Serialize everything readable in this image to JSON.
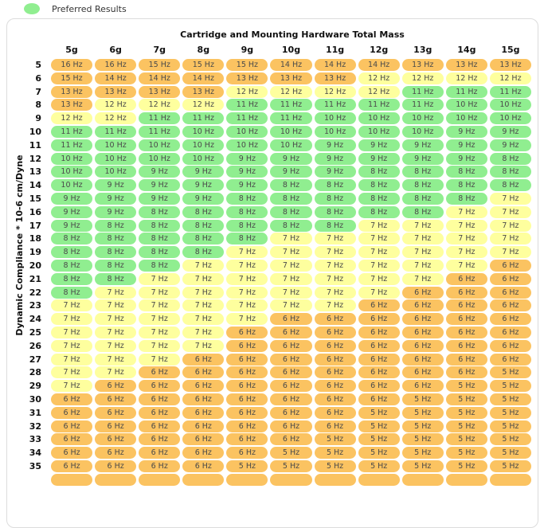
{
  "legend": {
    "label": "Preferred Results",
    "dot_color": "#90EE90"
  },
  "panel": {
    "title": "Cartridge and Mounting Hardware Total Mass",
    "y_axis_label": "Dynamic Compliance * 10-6 cm/Dyne"
  },
  "chart_data": {
    "type": "heatmap",
    "title": "Cartridge and Mounting Hardware Total Mass",
    "xlabel": "Cartridge and Mounting Hardware Total Mass",
    "ylabel": "Dynamic Compliance * 10-6 cm/Dyne",
    "unit": "Hz",
    "columns": [
      "5g",
      "6g",
      "7g",
      "8g",
      "9g",
      "10g",
      "11g",
      "12g",
      "13g",
      "14g",
      "15g"
    ],
    "row_labels": [
      5,
      6,
      7,
      8,
      9,
      10,
      11,
      12,
      13,
      14,
      15,
      16,
      17,
      18,
      19,
      20,
      21,
      22,
      23,
      24,
      25,
      26,
      27,
      28,
      29,
      30,
      31,
      32,
      33,
      34,
      35
    ],
    "values": [
      [
        16,
        16,
        15,
        15,
        15,
        14,
        14,
        14,
        13,
        13,
        13
      ],
      [
        15,
        14,
        14,
        14,
        13,
        13,
        13,
        12,
        12,
        12,
        12
      ],
      [
        13,
        13,
        13,
        13,
        12,
        12,
        12,
        12,
        11,
        11,
        11
      ],
      [
        13,
        12,
        12,
        12,
        11,
        11,
        11,
        11,
        11,
        10,
        10
      ],
      [
        12,
        12,
        11,
        11,
        11,
        11,
        10,
        10,
        10,
        10,
        10
      ],
      [
        11,
        11,
        11,
        10,
        10,
        10,
        10,
        10,
        10,
        9,
        9
      ],
      [
        11,
        10,
        10,
        10,
        10,
        10,
        9,
        9,
        9,
        9,
        9
      ],
      [
        10,
        10,
        10,
        10,
        9,
        9,
        9,
        9,
        9,
        9,
        8
      ],
      [
        10,
        10,
        9,
        9,
        9,
        9,
        9,
        8,
        8,
        8,
        8
      ],
      [
        10,
        9,
        9,
        9,
        9,
        8,
        8,
        8,
        8,
        8,
        8
      ],
      [
        9,
        9,
        9,
        9,
        8,
        8,
        8,
        8,
        8,
        8,
        7
      ],
      [
        9,
        9,
        8,
        8,
        8,
        8,
        8,
        8,
        8,
        7,
        7
      ],
      [
        9,
        8,
        8,
        8,
        8,
        8,
        8,
        7,
        7,
        7,
        7
      ],
      [
        8,
        8,
        8,
        8,
        8,
        7,
        7,
        7,
        7,
        7,
        7
      ],
      [
        8,
        8,
        8,
        8,
        7,
        7,
        7,
        7,
        7,
        7,
        7
      ],
      [
        8,
        8,
        8,
        7,
        7,
        7,
        7,
        7,
        7,
        7,
        6
      ],
      [
        8,
        8,
        7,
        7,
        7,
        7,
        7,
        7,
        7,
        6,
        6
      ],
      [
        8,
        7,
        7,
        7,
        7,
        7,
        7,
        7,
        6,
        6,
        6
      ],
      [
        7,
        7,
        7,
        7,
        7,
        7,
        7,
        6,
        6,
        6,
        6
      ],
      [
        7,
        7,
        7,
        7,
        7,
        6,
        6,
        6,
        6,
        6,
        6
      ],
      [
        7,
        7,
        7,
        7,
        6,
        6,
        6,
        6,
        6,
        6,
        6
      ],
      [
        7,
        7,
        7,
        7,
        6,
        6,
        6,
        6,
        6,
        6,
        6
      ],
      [
        7,
        7,
        7,
        6,
        6,
        6,
        6,
        6,
        6,
        6,
        6
      ],
      [
        7,
        7,
        6,
        6,
        6,
        6,
        6,
        6,
        6,
        6,
        5
      ],
      [
        7,
        6,
        6,
        6,
        6,
        6,
        6,
        6,
        6,
        5,
        5
      ],
      [
        6,
        6,
        6,
        6,
        6,
        6,
        6,
        6,
        5,
        5,
        5
      ],
      [
        6,
        6,
        6,
        6,
        6,
        6,
        6,
        5,
        5,
        5,
        5
      ],
      [
        6,
        6,
        6,
        6,
        6,
        6,
        6,
        5,
        5,
        5,
        5
      ],
      [
        6,
        6,
        6,
        6,
        6,
        6,
        5,
        5,
        5,
        5,
        5
      ],
      [
        6,
        6,
        6,
        6,
        6,
        5,
        5,
        5,
        5,
        5,
        5
      ],
      [
        6,
        6,
        6,
        6,
        5,
        5,
        5,
        5,
        5,
        5,
        5
      ]
    ],
    "color_scale": {
      "green": "#90EE90",
      "yellow": "#FEFF9E",
      "orange": "#FBC361",
      "rules": {
        "green_range": [
          8,
          11
        ],
        "yellow_values": [
          7,
          12
        ],
        "otherwise": "orange"
      }
    },
    "legend_label": "Preferred Results",
    "legend_position": "top-left",
    "grid": false,
    "partial_bottom_row_visible": true
  }
}
